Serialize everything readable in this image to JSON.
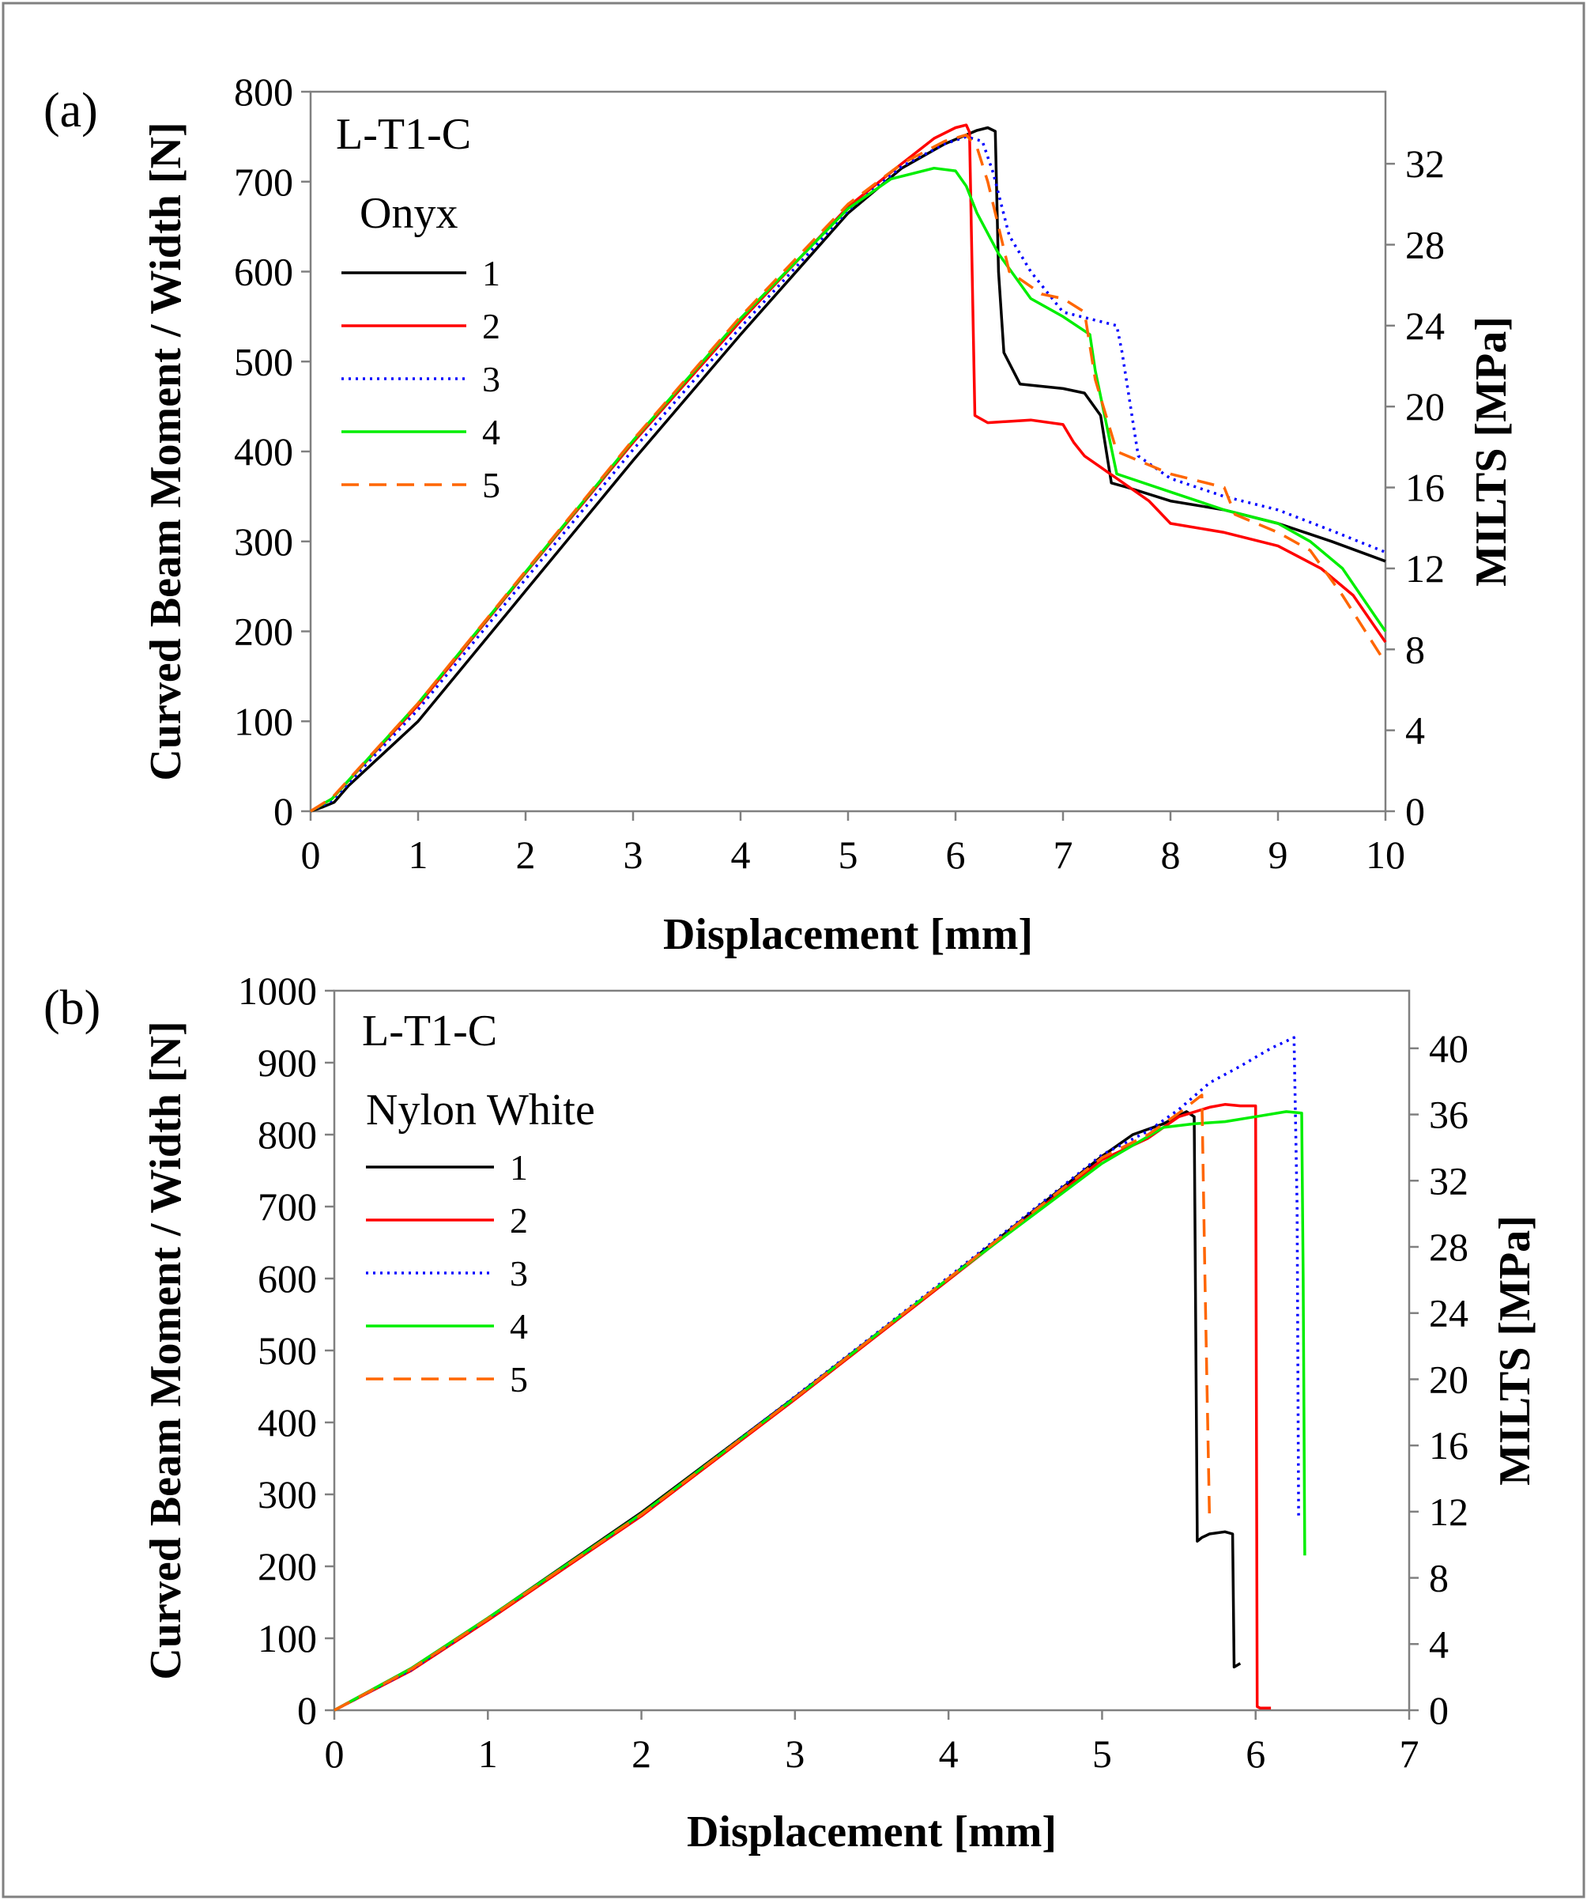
{
  "figure": {
    "border_color": "#808080"
  },
  "chart_data": [
    {
      "type": "line",
      "panel_label": "(a)",
      "title": "L-T1-C",
      "material": "Onyx",
      "xlabel": "Displacement [mm]",
      "ylabel": "Curved Beam Moment / Width [N]",
      "y2label": "MILTS [MPa]",
      "xlim": [
        0,
        10
      ],
      "ylim": [
        0,
        800
      ],
      "y2lim": [
        0,
        35.56
      ],
      "xticks": [
        0,
        1,
        2,
        3,
        4,
        5,
        6,
        7,
        8,
        9,
        10
      ],
      "yticks": [
        0,
        100,
        200,
        300,
        400,
        500,
        600,
        700,
        800
      ],
      "y2ticks": [
        0,
        4,
        8,
        12,
        16,
        20,
        24,
        28,
        32
      ],
      "grid": false,
      "legend_position": "top-left",
      "series": [
        {
          "name": "1",
          "color": "#000000",
          "dash": "solid",
          "x": [
            0,
            0.12,
            0.22,
            0.35,
            1,
            2,
            3,
            4,
            5,
            5.5,
            5.9,
            6.1,
            6.2,
            6.3,
            6.37,
            6.4,
            6.45,
            6.6,
            7.0,
            7.2,
            7.35,
            7.45,
            7.6,
            8.0,
            8.5,
            9.0,
            9.5,
            10
          ],
          "y": [
            0,
            5,
            10,
            28,
            100,
            245,
            390,
            530,
            665,
            715,
            742,
            752,
            757,
            760,
            756,
            600,
            510,
            475,
            470,
            465,
            440,
            365,
            360,
            345,
            335,
            320,
            300,
            278
          ]
        },
        {
          "name": "2",
          "color": "#ff0000",
          "dash": "solid",
          "x": [
            0,
            0.2,
            1,
            2,
            3,
            4,
            5,
            5.5,
            5.8,
            6.0,
            6.1,
            6.13,
            6.18,
            6.3,
            6.7,
            7.0,
            7.1,
            7.2,
            7.5,
            7.8,
            8.0,
            8.5,
            9.0,
            9.4,
            9.7,
            10
          ],
          "y": [
            0,
            14,
            118,
            265,
            410,
            545,
            672,
            720,
            748,
            760,
            763,
            755,
            440,
            432,
            435,
            430,
            410,
            395,
            370,
            345,
            320,
            310,
            295,
            270,
            240,
            188
          ]
        },
        {
          "name": "3",
          "color": "#0000ff",
          "dash": "dotted",
          "x": [
            0,
            0.2,
            1,
            2,
            3,
            4,
            5,
            5.5,
            5.9,
            6.1,
            6.25,
            6.35,
            6.5,
            6.7,
            7.0,
            7.5,
            7.55,
            7.7,
            8.0,
            8.5,
            9.0,
            9.5,
            10
          ],
          "y": [
            0,
            12,
            113,
            258,
            402,
            538,
            668,
            717,
            742,
            750,
            745,
            710,
            640,
            600,
            555,
            540,
            510,
            395,
            370,
            350,
            335,
            312,
            288
          ]
        },
        {
          "name": "4",
          "color": "#00ee00",
          "dash": "solid",
          "x": [
            0,
            0.2,
            1,
            2,
            3,
            4,
            5,
            5.4,
            5.8,
            6.0,
            6.1,
            6.2,
            6.4,
            6.7,
            7.0,
            7.25,
            7.3,
            7.5,
            8.0,
            8.5,
            9.0,
            9.3,
            9.6,
            10
          ],
          "y": [
            0,
            14,
            120,
            266,
            412,
            548,
            670,
            703,
            715,
            712,
            695,
            665,
            620,
            570,
            550,
            530,
            490,
            375,
            355,
            335,
            320,
            300,
            270,
            200
          ]
        },
        {
          "name": "5",
          "color": "#ff6600",
          "dash": "dashed",
          "x": [
            0,
            0.2,
            1,
            2,
            3,
            4,
            5,
            5.5,
            5.9,
            6.1,
            6.2,
            6.3,
            6.5,
            6.8,
            7.0,
            7.2,
            7.3,
            7.5,
            8.0,
            8.5,
            8.6,
            9.0,
            9.3,
            9.6,
            10
          ],
          "y": [
            0,
            15,
            120,
            267,
            413,
            550,
            675,
            720,
            745,
            752,
            738,
            700,
            600,
            575,
            570,
            555,
            480,
            400,
            375,
            360,
            330,
            310,
            290,
            240,
            165
          ]
        }
      ]
    },
    {
      "type": "line",
      "panel_label": "(b)",
      "title": "L-T1-C",
      "material": "Nylon White",
      "xlabel": "Displacement [mm]",
      "ylabel": "Curved Beam Moment / Width [N]",
      "y2label": "MILTS [MPa]",
      "xlim": [
        0,
        7
      ],
      "ylim": [
        0,
        1000
      ],
      "y2lim": [
        0,
        43.48
      ],
      "xticks": [
        0,
        1,
        2,
        3,
        4,
        5,
        6,
        7
      ],
      "yticks": [
        0,
        100,
        200,
        300,
        400,
        500,
        600,
        700,
        800,
        900,
        1000
      ],
      "y2ticks": [
        0,
        4,
        8,
        12,
        16,
        20,
        24,
        28,
        32,
        36,
        40
      ],
      "grid": false,
      "legend_position": "top-left",
      "series": [
        {
          "name": "1",
          "color": "#000000",
          "dash": "solid",
          "x": [
            0,
            0.5,
            1,
            2,
            3,
            4,
            5,
            5.2,
            5.4,
            5.55,
            5.6,
            5.62,
            5.65,
            5.7,
            5.8,
            5.85,
            5.86,
            5.9
          ],
          "y": [
            0,
            58,
            128,
            275,
            435,
            600,
            770,
            800,
            815,
            832,
            825,
            235,
            240,
            245,
            248,
            245,
            60,
            65
          ]
        },
        {
          "name": "2",
          "color": "#ff0000",
          "dash": "solid",
          "x": [
            0,
            0.5,
            1,
            2,
            3,
            4,
            5,
            5.3,
            5.5,
            5.7,
            5.8,
            5.9,
            6.0,
            6.01,
            6.03,
            6.1
          ],
          "y": [
            0,
            55,
            125,
            270,
            432,
            598,
            765,
            795,
            825,
            838,
            842,
            840,
            840,
            5,
            3,
            3
          ]
        },
        {
          "name": "3",
          "color": "#0000ff",
          "dash": "dotted",
          "x": [
            0,
            0.5,
            1,
            2,
            3,
            4,
            5,
            5.3,
            5.5,
            5.7,
            5.9,
            6.1,
            6.25,
            6.27,
            6.28,
            6.3
          ],
          "y": [
            0,
            56,
            127,
            272,
            436,
            602,
            772,
            805,
            835,
            872,
            895,
            920,
            935,
            700,
            270,
            270
          ]
        },
        {
          "name": "4",
          "color": "#00ee00",
          "dash": "solid",
          "x": [
            0,
            0.5,
            1,
            2,
            3,
            4,
            5,
            5.4,
            5.6,
            5.8,
            6.0,
            6.2,
            6.3,
            6.31,
            6.32
          ],
          "y": [
            0,
            58,
            128,
            273,
            434,
            600,
            760,
            810,
            815,
            818,
            825,
            832,
            830,
            600,
            215
          ]
        },
        {
          "name": "5",
          "color": "#ff6600",
          "dash": "dashed",
          "x": [
            0,
            0.5,
            1,
            2,
            3,
            4,
            5,
            5.3,
            5.5,
            5.65,
            5.67,
            5.7
          ],
          "y": [
            0,
            57,
            127,
            272,
            434,
            600,
            768,
            800,
            830,
            855,
            600,
            265
          ]
        }
      ]
    }
  ]
}
